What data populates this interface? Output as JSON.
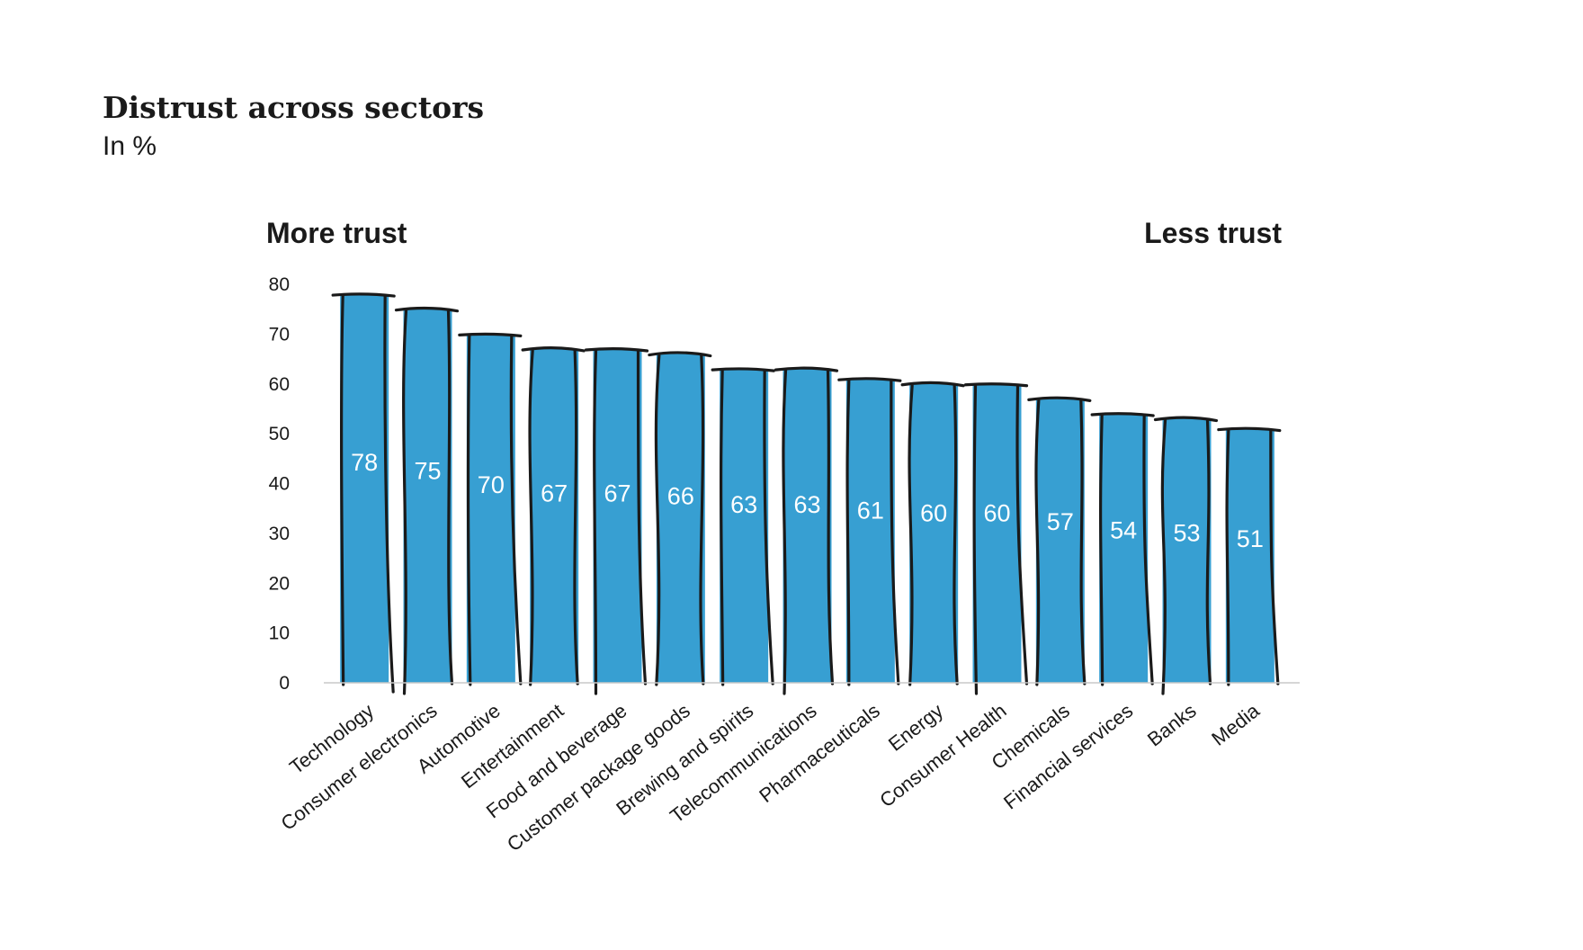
{
  "title": "Distrust across sectors",
  "subtitle": "In %",
  "colors": {
    "bar": "#379fd2",
    "axis": "#c8c8c8",
    "sketch": "#1a1a1a",
    "text": "#1a1a1a"
  },
  "chart_data": {
    "type": "bar",
    "categories": [
      "Technology",
      "Consumer electronics",
      "Automotive",
      "Entertainment",
      "Food and beverage",
      "Customer package goods",
      "Brewing and spirits",
      "Telecommunications",
      "Pharmaceuticals",
      "Energy",
      "Consumer Health",
      "Chemicals",
      "Financial services",
      "Banks",
      "Media"
    ],
    "values": [
      78,
      75,
      70,
      67,
      67,
      66,
      63,
      63,
      61,
      60,
      60,
      57,
      54,
      53,
      51
    ],
    "ylim": [
      0,
      80
    ],
    "yticks": [
      0,
      10,
      20,
      30,
      40,
      50,
      60,
      70,
      80
    ],
    "left_annotation": "More trust",
    "right_annotation": "Less trust",
    "grid": false,
    "legend": "none"
  }
}
